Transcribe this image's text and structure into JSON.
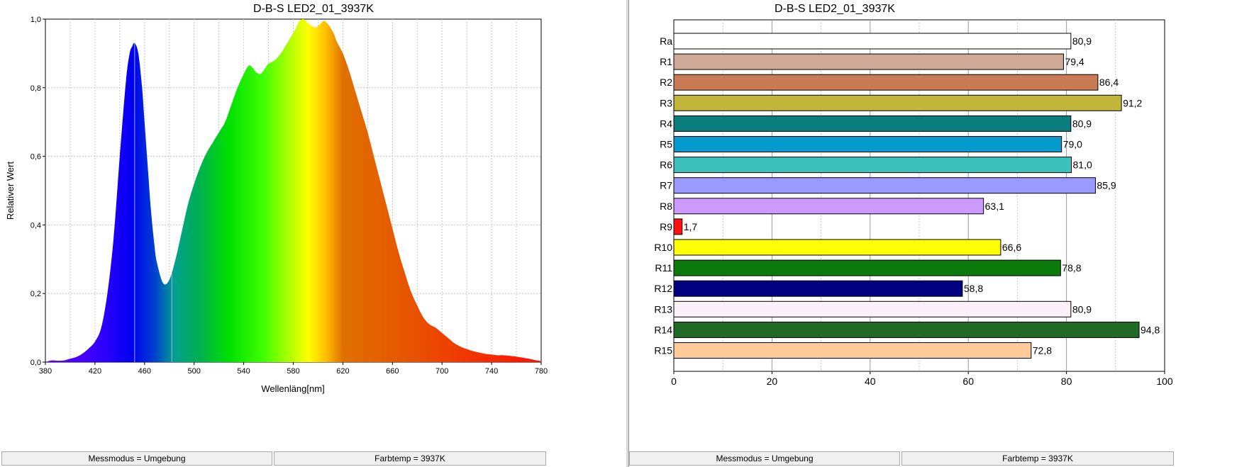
{
  "spectrum_panel": {
    "status_left": "Messmodus = Umgebung",
    "status_right": "Farbtemp = 3937K"
  },
  "cri_panel": {
    "status_left": "Messmodus = Umgebung",
    "status_right": "Farbtemp = 3937K"
  },
  "chart_data": [
    {
      "type": "area",
      "title": "D-B-S LED2_01_3937K",
      "xlabel": "Wellenläng[nm]",
      "ylabel": "Relativer Wert",
      "xlim": [
        380,
        780
      ],
      "ylim": [
        0,
        1.0
      ],
      "x_ticks": [
        "380",
        "420",
        "460",
        "500",
        "540",
        "580",
        "620",
        "660",
        "700",
        "740",
        "780"
      ],
      "y_ticks": [
        "0,0",
        "0,2",
        "0,4",
        "0,6",
        "0,8",
        "1,0"
      ],
      "grid": true,
      "fill": "visible-spectrum color gradient",
      "markers_nm": [
        452,
        482
      ],
      "x": [
        380,
        385,
        390,
        395,
        400,
        405,
        410,
        415,
        420,
        425,
        430,
        435,
        440,
        445,
        448,
        450,
        452,
        455,
        458,
        460,
        463,
        465,
        468,
        470,
        475,
        480,
        485,
        490,
        495,
        500,
        505,
        510,
        515,
        520,
        525,
        530,
        535,
        540,
        543,
        545,
        548,
        550,
        553,
        555,
        558,
        560,
        565,
        570,
        575,
        580,
        583,
        585,
        588,
        590,
        593,
        595,
        598,
        600,
        603,
        605,
        608,
        610,
        613,
        615,
        620,
        625,
        630,
        635,
        640,
        645,
        650,
        655,
        660,
        665,
        670,
        675,
        680,
        685,
        690,
        695,
        700,
        705,
        710,
        715,
        720,
        725,
        730,
        735,
        740,
        745,
        750,
        755,
        760,
        765,
        770,
        775,
        780
      ],
      "y": [
        0.0,
        0.005,
        0.004,
        0.005,
        0.01,
        0.015,
        0.025,
        0.04,
        0.06,
        0.1,
        0.2,
        0.36,
        0.6,
        0.82,
        0.9,
        0.92,
        0.93,
        0.9,
        0.8,
        0.7,
        0.55,
        0.45,
        0.34,
        0.29,
        0.23,
        0.24,
        0.3,
        0.38,
        0.46,
        0.52,
        0.57,
        0.61,
        0.64,
        0.67,
        0.7,
        0.75,
        0.8,
        0.84,
        0.86,
        0.865,
        0.855,
        0.845,
        0.84,
        0.845,
        0.86,
        0.87,
        0.88,
        0.9,
        0.93,
        0.96,
        0.98,
        0.995,
        1.0,
        0.995,
        0.985,
        0.98,
        0.975,
        0.98,
        0.99,
        0.995,
        0.985,
        0.975,
        0.955,
        0.935,
        0.9,
        0.85,
        0.79,
        0.73,
        0.67,
        0.6,
        0.53,
        0.46,
        0.39,
        0.32,
        0.26,
        0.205,
        0.165,
        0.13,
        0.11,
        0.1,
        0.085,
        0.07,
        0.055,
        0.045,
        0.038,
        0.032,
        0.028,
        0.024,
        0.022,
        0.02,
        0.02,
        0.018,
        0.016,
        0.013,
        0.01,
        0.006,
        0.003
      ]
    },
    {
      "type": "bar",
      "orientation": "horizontal",
      "title": "D-B-S LED2_01_3937K",
      "xlim": [
        0,
        100
      ],
      "x_ticks": [
        "0",
        "20",
        "40",
        "60",
        "80",
        "100"
      ],
      "grid": true,
      "categories": [
        "Ra",
        "R1",
        "R2",
        "R3",
        "R4",
        "R5",
        "R6",
        "R7",
        "R8",
        "R9",
        "R10",
        "R11",
        "R12",
        "R13",
        "R14",
        "R15"
      ],
      "values": [
        80.9,
        79.4,
        86.4,
        91.2,
        80.9,
        79.0,
        81.0,
        85.9,
        63.1,
        1.7,
        66.6,
        78.8,
        58.8,
        80.9,
        94.8,
        72.8
      ],
      "labels": [
        "80,9",
        "79,4",
        "86,4",
        "91,2",
        "80,9",
        "79,0",
        "81,0",
        "85,9",
        "63,1",
        "1,7",
        "66,6",
        "78,8",
        "58,8",
        "80,9",
        "94,8",
        "72,8"
      ],
      "colors": [
        "#ffffff",
        "#cfa898",
        "#c97b55",
        "#c0b63a",
        "#0a7d7d",
        "#0599cc",
        "#3cc1bd",
        "#9999ff",
        "#cc99ff",
        "#ff1010",
        "#ffff00",
        "#0a7a0a",
        "#000080",
        "#fcf0fa",
        "#206a26",
        "#ffcc99"
      ]
    }
  ]
}
